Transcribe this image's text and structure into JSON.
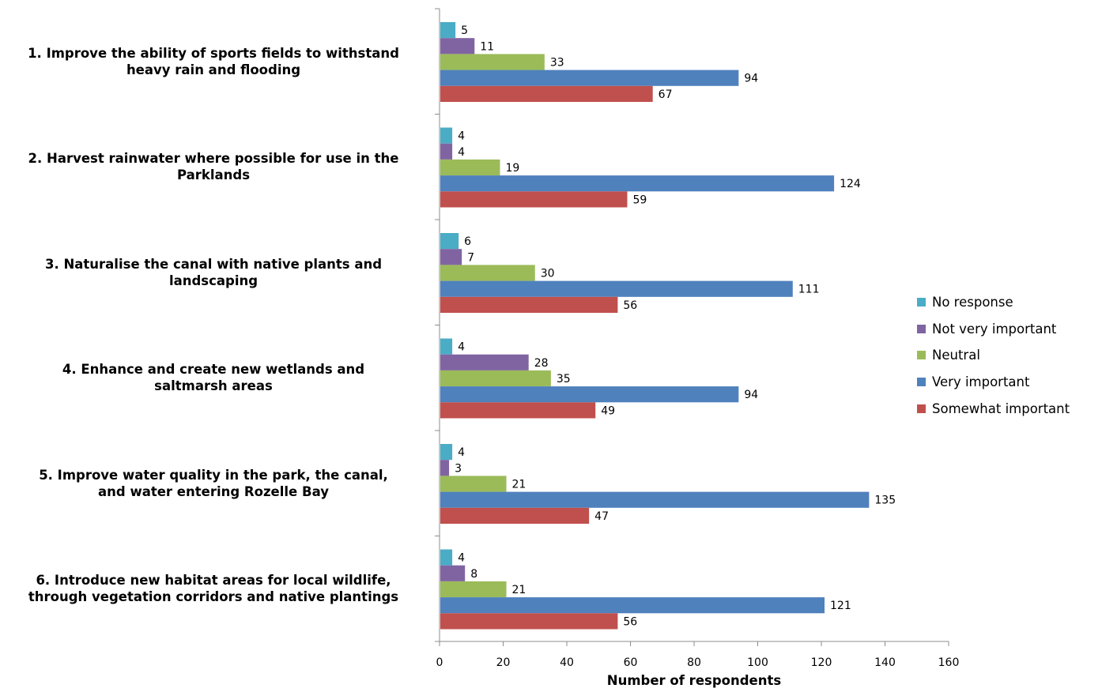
{
  "chart_data": {
    "type": "bar",
    "orientation": "horizontal",
    "categories": [
      [
        "1. Improve the ability of sports fields to withstand",
        "heavy rain and flooding"
      ],
      [
        "2. Harvest rainwater where possible for use in the",
        "Parklands"
      ],
      [
        "3. Naturalise the canal with native plants and",
        "landscaping"
      ],
      [
        "4. Enhance and create new wetlands and",
        "saltmarsh areas"
      ],
      [
        "5. Improve water quality in the park, the canal,",
        "and water entering Rozelle Bay"
      ],
      [
        "6. Introduce new habitat areas for local wildlife,",
        "through vegetation corridors and native plantings"
      ]
    ],
    "series": [
      {
        "name": "No response",
        "color": "#4bacc6",
        "values": [
          5,
          4,
          6,
          4,
          4,
          4
        ]
      },
      {
        "name": "Not very important",
        "color": "#8064a2",
        "values": [
          11,
          4,
          7,
          28,
          3,
          8
        ]
      },
      {
        "name": "Neutral",
        "color": "#9bbb59",
        "values": [
          33,
          19,
          30,
          35,
          21,
          21
        ]
      },
      {
        "name": "Very important",
        "color": "#4f81bd",
        "values": [
          94,
          124,
          111,
          94,
          135,
          121
        ]
      },
      {
        "name": "Somewhat important",
        "color": "#c0504d",
        "values": [
          67,
          59,
          56,
          49,
          47,
          56
        ]
      }
    ],
    "xlabel": "Number of respondents",
    "ylabel": "",
    "xlim": [
      0,
      160
    ],
    "xticks": [
      0,
      20,
      40,
      60,
      80,
      100,
      120,
      140,
      160
    ],
    "grid": false,
    "legend": "right",
    "data_labels": true
  }
}
